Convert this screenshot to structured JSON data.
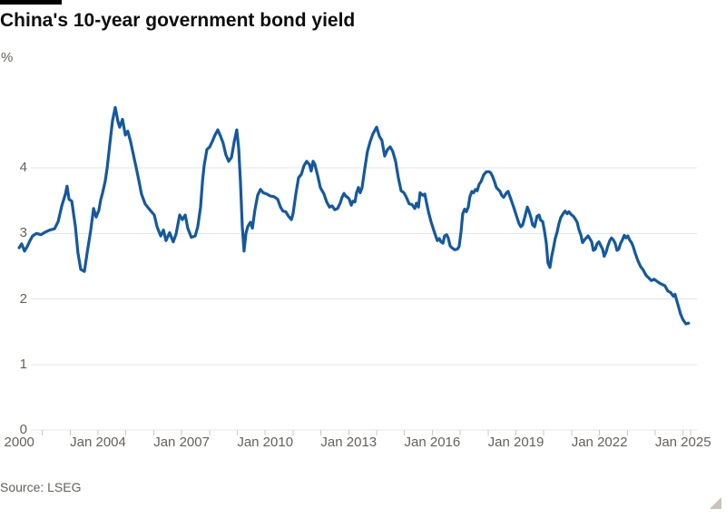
{
  "chart": {
    "title": "China's 10-year government bond yield",
    "unit": "%",
    "source": "Source: LSEG"
  },
  "chart_data": {
    "type": "line",
    "title": "China's 10-year government bond yield",
    "unit": "%",
    "source": "Source: LSEG",
    "grid": "horizontal",
    "legend": "none",
    "line_color": "#14599f",
    "grid_color": "#e5e5e5",
    "tick_color": "#c9c9c9",
    "label_color": "#66605c",
    "ylim": [
      0,
      5.3
    ],
    "xlim": [
      2000.67,
      2025.27
    ],
    "y_ticks": [
      0,
      1,
      2,
      3,
      4
    ],
    "x_ticks": [
      {
        "label": "Sep 2000",
        "x": 2000.67
      },
      {
        "label": "Jan 2004",
        "x": 2004
      },
      {
        "label": "Jan 2007",
        "x": 2007
      },
      {
        "label": "Jan 2010",
        "x": 2010
      },
      {
        "label": "Jan 2013",
        "x": 2013
      },
      {
        "label": "Jan 2016",
        "x": 2016
      },
      {
        "label": "Jan 2019",
        "x": 2019
      },
      {
        "label": "Jan 2022",
        "x": 2022
      },
      {
        "label": "Jan 2025",
        "x": 2025
      }
    ],
    "minor_tick_years": [
      2002,
      2003,
      2004,
      2005,
      2006,
      2007,
      2008,
      2009,
      2010,
      2011,
      2012,
      2013,
      2014,
      2015,
      2016,
      2017,
      2018,
      2019,
      2020,
      2021,
      2022,
      2023,
      2024,
      2025,
      2025.27
    ],
    "series": [
      {
        "name": "China 10-year government bond yield (%)",
        "points": [
          [
            2001.17,
            2.78
          ],
          [
            2001.26,
            2.84
          ],
          [
            2001.36,
            2.73
          ],
          [
            2001.46,
            2.8
          ],
          [
            2001.56,
            2.89
          ],
          [
            2001.65,
            2.96
          ],
          [
            2001.79,
            3.0
          ],
          [
            2001.95,
            2.98
          ],
          [
            2002.11,
            3.02
          ],
          [
            2002.27,
            3.05
          ],
          [
            2002.44,
            3.07
          ],
          [
            2002.57,
            3.18
          ],
          [
            2002.7,
            3.42
          ],
          [
            2002.83,
            3.6
          ],
          [
            2002.89,
            3.72
          ],
          [
            2002.96,
            3.52
          ],
          [
            2003.06,
            3.49
          ],
          [
            2003.19,
            3.1
          ],
          [
            2003.28,
            2.7
          ],
          [
            2003.38,
            2.45
          ],
          [
            2003.51,
            2.42
          ],
          [
            2003.61,
            2.7
          ],
          [
            2003.74,
            3.05
          ],
          [
            2003.84,
            3.38
          ],
          [
            2003.93,
            3.25
          ],
          [
            2004.03,
            3.35
          ],
          [
            2004.1,
            3.52
          ],
          [
            2004.16,
            3.61
          ],
          [
            2004.26,
            3.8
          ],
          [
            2004.33,
            4.0
          ],
          [
            2004.42,
            4.35
          ],
          [
            2004.52,
            4.72
          ],
          [
            2004.62,
            4.92
          ],
          [
            2004.72,
            4.7
          ],
          [
            2004.78,
            4.62
          ],
          [
            2004.88,
            4.74
          ],
          [
            2004.98,
            4.5
          ],
          [
            2005.07,
            4.56
          ],
          [
            2005.17,
            4.4
          ],
          [
            2005.27,
            4.2
          ],
          [
            2005.37,
            4.0
          ],
          [
            2005.47,
            3.8
          ],
          [
            2005.56,
            3.6
          ],
          [
            2005.69,
            3.45
          ],
          [
            2005.82,
            3.38
          ],
          [
            2005.92,
            3.33
          ],
          [
            2006.02,
            3.28
          ],
          [
            2006.12,
            3.1
          ],
          [
            2006.25,
            2.96
          ],
          [
            2006.35,
            3.05
          ],
          [
            2006.44,
            2.89
          ],
          [
            2006.57,
            3.01
          ],
          [
            2006.7,
            2.87
          ],
          [
            2006.8,
            2.99
          ],
          [
            2006.93,
            3.28
          ],
          [
            2007.03,
            3.21
          ],
          [
            2007.13,
            3.28
          ],
          [
            2007.22,
            3.08
          ],
          [
            2007.35,
            2.94
          ],
          [
            2007.49,
            2.96
          ],
          [
            2007.58,
            3.1
          ],
          [
            2007.68,
            3.4
          ],
          [
            2007.75,
            3.79
          ],
          [
            2007.81,
            4.04
          ],
          [
            2007.91,
            4.28
          ],
          [
            2008.01,
            4.32
          ],
          [
            2008.1,
            4.4
          ],
          [
            2008.2,
            4.5
          ],
          [
            2008.3,
            4.58
          ],
          [
            2008.4,
            4.48
          ],
          [
            2008.49,
            4.38
          ],
          [
            2008.59,
            4.2
          ],
          [
            2008.69,
            4.1
          ],
          [
            2008.79,
            4.16
          ],
          [
            2008.89,
            4.4
          ],
          [
            2008.98,
            4.58
          ],
          [
            2009.05,
            4.3
          ],
          [
            2009.11,
            3.8
          ],
          [
            2009.18,
            3.1
          ],
          [
            2009.24,
            2.73
          ],
          [
            2009.31,
            3.0
          ],
          [
            2009.37,
            3.1
          ],
          [
            2009.47,
            3.17
          ],
          [
            2009.54,
            3.08
          ],
          [
            2009.63,
            3.35
          ],
          [
            2009.73,
            3.58
          ],
          [
            2009.83,
            3.67
          ],
          [
            2009.93,
            3.62
          ],
          [
            2010.06,
            3.6
          ],
          [
            2010.19,
            3.57
          ],
          [
            2010.32,
            3.56
          ],
          [
            2010.45,
            3.52
          ],
          [
            2010.55,
            3.4
          ],
          [
            2010.64,
            3.34
          ],
          [
            2010.74,
            3.33
          ],
          [
            2010.84,
            3.26
          ],
          [
            2010.94,
            3.21
          ],
          [
            2011.0,
            3.3
          ],
          [
            2011.1,
            3.6
          ],
          [
            2011.2,
            3.85
          ],
          [
            2011.3,
            3.9
          ],
          [
            2011.39,
            4.03
          ],
          [
            2011.49,
            4.1
          ],
          [
            2011.59,
            4.05
          ],
          [
            2011.65,
            3.95
          ],
          [
            2011.72,
            4.1
          ],
          [
            2011.78,
            4.06
          ],
          [
            2011.88,
            3.89
          ],
          [
            2011.98,
            3.7
          ],
          [
            2012.11,
            3.6
          ],
          [
            2012.21,
            3.48
          ],
          [
            2012.31,
            3.4
          ],
          [
            2012.4,
            3.42
          ],
          [
            2012.5,
            3.36
          ],
          [
            2012.6,
            3.38
          ],
          [
            2012.7,
            3.47
          ],
          [
            2012.76,
            3.55
          ],
          [
            2012.83,
            3.61
          ],
          [
            2012.89,
            3.57
          ],
          [
            2012.96,
            3.55
          ],
          [
            2013.02,
            3.52
          ],
          [
            2013.09,
            3.43
          ],
          [
            2013.15,
            3.49
          ],
          [
            2013.22,
            3.48
          ],
          [
            2013.28,
            3.62
          ],
          [
            2013.35,
            3.7
          ],
          [
            2013.41,
            3.62
          ],
          [
            2013.48,
            3.7
          ],
          [
            2013.58,
            4.0
          ],
          [
            2013.67,
            4.25
          ],
          [
            2013.77,
            4.4
          ],
          [
            2013.87,
            4.52
          ],
          [
            2014.0,
            4.62
          ],
          [
            2014.1,
            4.48
          ],
          [
            2014.19,
            4.42
          ],
          [
            2014.29,
            4.18
          ],
          [
            2014.39,
            4.28
          ],
          [
            2014.49,
            4.32
          ],
          [
            2014.58,
            4.25
          ],
          [
            2014.68,
            4.1
          ],
          [
            2014.78,
            3.85
          ],
          [
            2014.88,
            3.65
          ],
          [
            2014.98,
            3.62
          ],
          [
            2015.07,
            3.55
          ],
          [
            2015.17,
            3.45
          ],
          [
            2015.27,
            3.44
          ],
          [
            2015.37,
            3.38
          ],
          [
            2015.43,
            3.46
          ],
          [
            2015.5,
            3.4
          ],
          [
            2015.56,
            3.62
          ],
          [
            2015.66,
            3.58
          ],
          [
            2015.73,
            3.6
          ],
          [
            2015.79,
            3.47
          ],
          [
            2015.86,
            3.33
          ],
          [
            2015.95,
            3.18
          ],
          [
            2016.05,
            3.05
          ],
          [
            2016.12,
            2.96
          ],
          [
            2016.18,
            2.89
          ],
          [
            2016.25,
            2.92
          ],
          [
            2016.31,
            2.87
          ],
          [
            2016.38,
            2.85
          ],
          [
            2016.44,
            2.96
          ],
          [
            2016.51,
            2.98
          ],
          [
            2016.57,
            2.93
          ],
          [
            2016.64,
            2.81
          ],
          [
            2016.7,
            2.78
          ],
          [
            2016.8,
            2.75
          ],
          [
            2016.9,
            2.76
          ],
          [
            2016.96,
            2.8
          ],
          [
            2017.03,
            3.02
          ],
          [
            2017.09,
            3.3
          ],
          [
            2017.16,
            3.37
          ],
          [
            2017.22,
            3.33
          ],
          [
            2017.29,
            3.4
          ],
          [
            2017.35,
            3.56
          ],
          [
            2017.42,
            3.64
          ],
          [
            2017.48,
            3.62
          ],
          [
            2017.55,
            3.67
          ],
          [
            2017.61,
            3.65
          ],
          [
            2017.68,
            3.75
          ],
          [
            2017.75,
            3.79
          ],
          [
            2017.84,
            3.89
          ],
          [
            2017.94,
            3.94
          ],
          [
            2018.04,
            3.94
          ],
          [
            2018.1,
            3.92
          ],
          [
            2018.17,
            3.86
          ],
          [
            2018.23,
            3.79
          ],
          [
            2018.3,
            3.7
          ],
          [
            2018.36,
            3.67
          ],
          [
            2018.43,
            3.64
          ],
          [
            2018.49,
            3.58
          ],
          [
            2018.56,
            3.55
          ],
          [
            2018.66,
            3.62
          ],
          [
            2018.72,
            3.64
          ],
          [
            2018.82,
            3.52
          ],
          [
            2018.92,
            3.4
          ],
          [
            2019.01,
            3.28
          ],
          [
            2019.11,
            3.15
          ],
          [
            2019.18,
            3.1
          ],
          [
            2019.24,
            3.13
          ],
          [
            2019.34,
            3.28
          ],
          [
            2019.41,
            3.4
          ],
          [
            2019.47,
            3.34
          ],
          [
            2019.54,
            3.24
          ],
          [
            2019.6,
            3.13
          ],
          [
            2019.67,
            3.1
          ],
          [
            2019.76,
            3.26
          ],
          [
            2019.83,
            3.28
          ],
          [
            2019.89,
            3.2
          ],
          [
            2019.96,
            3.18
          ],
          [
            2020.02,
            3.05
          ],
          [
            2020.09,
            2.85
          ],
          [
            2020.15,
            2.55
          ],
          [
            2020.22,
            2.48
          ],
          [
            2020.28,
            2.64
          ],
          [
            2020.35,
            2.78
          ],
          [
            2020.41,
            2.92
          ],
          [
            2020.48,
            3.02
          ],
          [
            2020.54,
            3.14
          ],
          [
            2020.61,
            3.24
          ],
          [
            2020.71,
            3.31
          ],
          [
            2020.77,
            3.34
          ],
          [
            2020.84,
            3.3
          ],
          [
            2020.9,
            3.33
          ],
          [
            2021.0,
            3.28
          ],
          [
            2021.07,
            3.26
          ],
          [
            2021.13,
            3.22
          ],
          [
            2021.2,
            3.17
          ],
          [
            2021.26,
            3.06
          ],
          [
            2021.33,
            2.98
          ],
          [
            2021.39,
            2.86
          ],
          [
            2021.46,
            2.9
          ],
          [
            2021.52,
            2.93
          ],
          [
            2021.59,
            2.96
          ],
          [
            2021.65,
            2.92
          ],
          [
            2021.72,
            2.87
          ],
          [
            2021.78,
            2.74
          ],
          [
            2021.85,
            2.76
          ],
          [
            2021.91,
            2.84
          ],
          [
            2021.98,
            2.87
          ],
          [
            2022.04,
            2.82
          ],
          [
            2022.11,
            2.76
          ],
          [
            2022.17,
            2.65
          ],
          [
            2022.24,
            2.72
          ],
          [
            2022.3,
            2.81
          ],
          [
            2022.37,
            2.89
          ],
          [
            2022.43,
            2.93
          ],
          [
            2022.5,
            2.9
          ],
          [
            2022.56,
            2.85
          ],
          [
            2022.63,
            2.74
          ],
          [
            2022.69,
            2.76
          ],
          [
            2022.76,
            2.85
          ],
          [
            2022.82,
            2.9
          ],
          [
            2022.89,
            2.97
          ],
          [
            2022.95,
            2.93
          ],
          [
            2023.02,
            2.96
          ],
          [
            2023.08,
            2.9
          ],
          [
            2023.15,
            2.86
          ],
          [
            2023.21,
            2.8
          ],
          [
            2023.28,
            2.7
          ],
          [
            2023.38,
            2.58
          ],
          [
            2023.47,
            2.5
          ],
          [
            2023.57,
            2.44
          ],
          [
            2023.67,
            2.36
          ],
          [
            2023.77,
            2.32
          ],
          [
            2023.86,
            2.28
          ],
          [
            2023.96,
            2.3
          ],
          [
            2024.06,
            2.27
          ],
          [
            2024.16,
            2.24
          ],
          [
            2024.25,
            2.22
          ],
          [
            2024.35,
            2.2
          ],
          [
            2024.45,
            2.12
          ],
          [
            2024.55,
            2.1
          ],
          [
            2024.65,
            2.04
          ],
          [
            2024.71,
            2.07
          ],
          [
            2024.81,
            1.92
          ],
          [
            2024.91,
            1.77
          ],
          [
            2025.0,
            1.68
          ],
          [
            2025.1,
            1.62
          ],
          [
            2025.2,
            1.63
          ]
        ]
      }
    ]
  }
}
